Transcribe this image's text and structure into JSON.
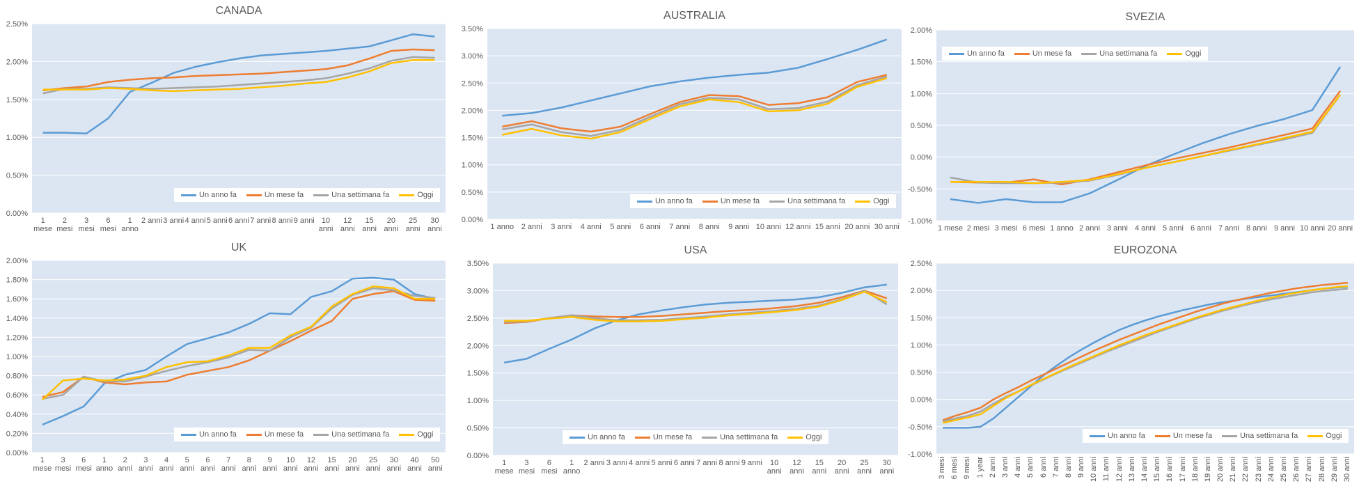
{
  "chart_data": [
    {
      "type": "line",
      "title": "CANADA",
      "categories": [
        "1 mese",
        "2 mesi",
        "3 mesi",
        "6 mesi",
        "1 anno",
        "2 anni",
        "3 anni",
        "4 anni",
        "5 anni",
        "6 anni",
        "7 anni",
        "8 anni",
        "9 anni",
        "10 anni",
        "12 anni",
        "15 anni",
        "20 anni",
        "25 anni",
        "30 anni"
      ],
      "series": [
        {
          "name": "Un anno fa",
          "color": "#5b9bd5",
          "values": [
            1.06,
            1.06,
            1.05,
            1.25,
            1.6,
            1.72,
            1.85,
            1.93,
            1.99,
            2.04,
            2.08,
            2.1,
            2.12,
            2.14,
            2.17,
            2.2,
            2.28,
            2.36,
            2.33
          ]
        },
        {
          "name": "Un mese fa",
          "color": "#ed7d31",
          "values": [
            1.62,
            1.65,
            1.67,
            1.73,
            1.76,
            1.78,
            1.79,
            1.81,
            1.82,
            1.83,
            1.84,
            1.86,
            1.88,
            1.9,
            1.95,
            2.04,
            2.14,
            2.16,
            2.15
          ]
        },
        {
          "name": "Una settimana fa",
          "color": "#a5a5a5",
          "values": [
            1.58,
            1.64,
            1.64,
            1.66,
            1.65,
            1.64,
            1.65,
            1.66,
            1.67,
            1.69,
            1.71,
            1.73,
            1.75,
            1.78,
            1.84,
            1.91,
            2.01,
            2.06,
            2.05
          ]
        },
        {
          "name": "Oggi",
          "color": "#ffc000",
          "values": [
            1.63,
            1.63,
            1.63,
            1.65,
            1.64,
            1.62,
            1.61,
            1.62,
            1.63,
            1.64,
            1.66,
            1.68,
            1.71,
            1.73,
            1.79,
            1.87,
            1.98,
            2.02,
            2.02
          ]
        }
      ],
      "ylim": [
        0,
        2.5
      ],
      "yticks": [
        {
          "value": 0,
          "label": "0.00%"
        },
        {
          "value": 0.5,
          "label": "0.50%"
        },
        {
          "value": 1,
          "label": "1.00%"
        },
        {
          "value": 1.5,
          "label": "1.50%"
        },
        {
          "value": 2,
          "label": "2.00%"
        },
        {
          "value": 2.5,
          "label": "2.50%"
        }
      ],
      "grid": true,
      "legend": "lower right"
    },
    {
      "type": "line",
      "title": "AUSTRALIA",
      "categories": [
        "1 anno",
        "2 anni",
        "3 anni",
        "4 anni",
        "5 anni",
        "6 anni",
        "7 anni",
        "8 anni",
        "9 anni",
        "10 anni",
        "12 anni",
        "15 anni",
        "20 anni",
        "30 anni"
      ],
      "series": [
        {
          "name": "Un anno fa",
          "color": "#5b9bd5",
          "values": [
            1.9,
            1.95,
            2.05,
            2.18,
            2.31,
            2.44,
            2.53,
            2.6,
            2.65,
            2.69,
            2.78,
            2.94,
            3.11,
            3.3
          ]
        },
        {
          "name": "Un mese fa",
          "color": "#ed7d31",
          "values": [
            1.7,
            1.8,
            1.67,
            1.61,
            1.7,
            1.93,
            2.15,
            2.28,
            2.26,
            2.1,
            2.13,
            2.24,
            2.52,
            2.65
          ]
        },
        {
          "name": "Una settimana fa",
          "color": "#a5a5a5",
          "values": [
            1.65,
            1.74,
            1.6,
            1.53,
            1.64,
            1.88,
            2.11,
            2.23,
            2.2,
            2.02,
            2.04,
            2.16,
            2.46,
            2.62
          ]
        },
        {
          "name": "Oggi",
          "color": "#ffc000",
          "values": [
            1.55,
            1.66,
            1.54,
            1.48,
            1.6,
            1.84,
            2.07,
            2.2,
            2.15,
            1.98,
            2.0,
            2.12,
            2.43,
            2.59
          ]
        }
      ],
      "ylim": [
        0,
        3.5
      ],
      "yticks": [
        {
          "value": 0,
          "label": "0.00%"
        },
        {
          "value": 0.5,
          "label": "0.50%"
        },
        {
          "value": 1,
          "label": "1.00%"
        },
        {
          "value": 1.5,
          "label": "1.50%"
        },
        {
          "value": 2,
          "label": "2.00%"
        },
        {
          "value": 2.5,
          "label": "2.50%"
        },
        {
          "value": 3,
          "label": "3.00%"
        },
        {
          "value": 3.5,
          "label": "3.50%"
        }
      ],
      "grid": true,
      "legend": "lower right"
    },
    {
      "type": "line",
      "title": "SVEZIA",
      "categories": [
        "1 mese",
        "2 mesi",
        "3 mesi",
        "6 mesi",
        "1 anno",
        "2 anni",
        "3 anni",
        "4 anni",
        "5 anni",
        "6 anni",
        "7 anni",
        "8 anni",
        "9 anni",
        "10 anni",
        "20 anni"
      ],
      "series": [
        {
          "name": "Un anno fa",
          "color": "#5b9bd5",
          "values": [
            -0.66,
            -0.72,
            -0.66,
            -0.71,
            -0.71,
            -0.57,
            -0.36,
            -0.14,
            0.04,
            0.21,
            0.36,
            0.49,
            0.6,
            0.74,
            1.42
          ]
        },
        {
          "name": "Un mese fa",
          "color": "#ed7d31",
          "values": [
            -0.39,
            -0.4,
            -0.4,
            -0.35,
            -0.43,
            -0.35,
            -0.24,
            -0.13,
            -0.03,
            0.06,
            0.15,
            0.25,
            0.35,
            0.45,
            1.04
          ]
        },
        {
          "name": "Una settimana fa",
          "color": "#a5a5a5",
          "values": [
            -0.32,
            -0.4,
            -0.41,
            -0.41,
            -0.4,
            -0.37,
            -0.28,
            -0.17,
            -0.08,
            0.01,
            0.1,
            0.19,
            0.28,
            0.38,
            0.98
          ]
        },
        {
          "name": "Oggi",
          "color": "#ffc000",
          "values": [
            -0.39,
            -0.39,
            -0.39,
            -0.41,
            -0.39,
            -0.36,
            -0.27,
            -0.17,
            -0.08,
            0.01,
            0.11,
            0.2,
            0.3,
            0.4,
            0.98
          ]
        }
      ],
      "ylim": [
        -1,
        2
      ],
      "yticks": [
        {
          "value": -1,
          "label": "-1.00%"
        },
        {
          "value": -0.5,
          "label": "-0.50%"
        },
        {
          "value": 0,
          "label": "0.00%"
        },
        {
          "value": 0.5,
          "label": "0.50%"
        },
        {
          "value": 1,
          "label": "1.00%"
        },
        {
          "value": 1.5,
          "label": "1.50%"
        },
        {
          "value": 2,
          "label": "2.00%"
        }
      ],
      "grid": true,
      "legend": "upper left"
    },
    {
      "type": "line",
      "title": "UK",
      "categories": [
        "1 mese",
        "3 mesi",
        "6 mesi",
        "1 anno",
        "2 anni",
        "3 anni",
        "4 anni",
        "5 anni",
        "6 anni",
        "7 anni",
        "8 anni",
        "9 anni",
        "10 anni",
        "12 anni",
        "15 anni",
        "20 anni",
        "25 anni",
        "30 anni",
        "40 anni",
        "50 anni"
      ],
      "series": [
        {
          "name": "Un anno fa",
          "color": "#5b9bd5",
          "values": [
            0.29,
            0.38,
            0.48,
            0.72,
            0.81,
            0.86,
            1.0,
            1.13,
            1.19,
            1.25,
            1.34,
            1.45,
            1.44,
            1.62,
            1.68,
            1.81,
            1.82,
            1.8,
            1.65,
            1.6
          ]
        },
        {
          "name": "Un mese fa",
          "color": "#ed7d31",
          "values": [
            0.58,
            0.63,
            0.79,
            0.73,
            0.71,
            0.73,
            0.74,
            0.81,
            0.85,
            0.89,
            0.96,
            1.06,
            1.16,
            1.27,
            1.37,
            1.6,
            1.65,
            1.68,
            1.59,
            1.58
          ]
        },
        {
          "name": "Una settimana fa",
          "color": "#a5a5a5",
          "values": [
            0.56,
            0.6,
            0.79,
            0.74,
            0.74,
            0.79,
            0.85,
            0.9,
            0.94,
            0.99,
            1.07,
            1.06,
            1.2,
            1.3,
            1.5,
            1.64,
            1.71,
            1.69,
            1.63,
            1.61
          ]
        },
        {
          "name": "Oggi",
          "color": "#ffc000",
          "values": [
            0.55,
            0.75,
            0.77,
            0.75,
            0.76,
            0.8,
            0.89,
            0.94,
            0.95,
            1.01,
            1.09,
            1.09,
            1.22,
            1.31,
            1.52,
            1.65,
            1.73,
            1.71,
            1.6,
            1.6
          ]
        }
      ],
      "ylim": [
        0,
        2
      ],
      "yticks": [
        {
          "value": 0,
          "label": "0.00%"
        },
        {
          "value": 0.2,
          "label": "0.20%"
        },
        {
          "value": 0.4,
          "label": "0.40%"
        },
        {
          "value": 0.6,
          "label": "0.60%"
        },
        {
          "value": 0.8,
          "label": "0.80%"
        },
        {
          "value": 1,
          "label": "1.00%"
        },
        {
          "value": 1.2,
          "label": "1.20%"
        },
        {
          "value": 1.4,
          "label": "1.40%"
        },
        {
          "value": 1.6,
          "label": "1.60%"
        },
        {
          "value": 1.8,
          "label": "1.80%"
        },
        {
          "value": 2,
          "label": "2.00%"
        }
      ],
      "grid": true,
      "legend": "lower right"
    },
    {
      "type": "line",
      "title": "USA",
      "categories": [
        "1 mese",
        "3 mesi",
        "6 mesi",
        "1 anno",
        "2 anni",
        "3 anni",
        "4 anni",
        "5 anni",
        "6 anni",
        "7 anni",
        "8 anni",
        "9 anni",
        "10 anni",
        "12 anni",
        "15 anni",
        "20 anni",
        "25 anni",
        "30 anni"
      ],
      "series": [
        {
          "name": "Un anno fa",
          "color": "#5b9bd5",
          "values": [
            1.69,
            1.76,
            1.94,
            2.11,
            2.31,
            2.46,
            2.57,
            2.64,
            2.7,
            2.75,
            2.78,
            2.8,
            2.82,
            2.84,
            2.88,
            2.96,
            3.06,
            3.11
          ]
        },
        {
          "name": "Un mese fa",
          "color": "#ed7d31",
          "values": [
            2.41,
            2.43,
            2.5,
            2.55,
            2.53,
            2.52,
            2.52,
            2.54,
            2.57,
            2.6,
            2.63,
            2.65,
            2.68,
            2.72,
            2.78,
            2.88,
            3.0,
            2.86
          ]
        },
        {
          "name": "Una settimana fa",
          "color": "#a5a5a5",
          "values": [
            2.43,
            2.44,
            2.5,
            2.55,
            2.5,
            2.46,
            2.46,
            2.47,
            2.5,
            2.53,
            2.57,
            2.6,
            2.63,
            2.67,
            2.73,
            2.84,
            3.0,
            2.75
          ]
        },
        {
          "name": "Oggi",
          "color": "#ffc000",
          "values": [
            2.45,
            2.45,
            2.49,
            2.52,
            2.47,
            2.44,
            2.44,
            2.45,
            2.48,
            2.51,
            2.55,
            2.58,
            2.61,
            2.65,
            2.71,
            2.83,
            2.98,
            2.79
          ]
        }
      ],
      "ylim": [
        0,
        3.5
      ],
      "yticks": [
        {
          "value": 0,
          "label": "0.00%"
        },
        {
          "value": 0.5,
          "label": "0.50%"
        },
        {
          "value": 1,
          "label": "1.00%"
        },
        {
          "value": 1.5,
          "label": "1.50%"
        },
        {
          "value": 2,
          "label": "2.00%"
        },
        {
          "value": 2.5,
          "label": "2.50%"
        },
        {
          "value": 3,
          "label": "3.00%"
        },
        {
          "value": 3.5,
          "label": "3.50%"
        }
      ],
      "grid": true,
      "legend": "lower center"
    },
    {
      "type": "line",
      "title": "EUROZONA",
      "categories": [
        "3 mesi",
        "6 mesi",
        "9 mesi",
        "1 year",
        "2 anni",
        "3 anni",
        "4 anni",
        "5 anni",
        "6 anni",
        "7 anni",
        "8 anni",
        "9 anni",
        "10 anni",
        "11 anni",
        "12 anni",
        "13 anni",
        "14 anni",
        "15 anni",
        "16 anni",
        "17 anni",
        "18 anni",
        "19 anni",
        "20 anni",
        "21 anni",
        "22 anni",
        "23 anni",
        "24 anni",
        "25 anni",
        "26 anni",
        "27 anni",
        "28 anni",
        "29 anni",
        "30 anni"
      ],
      "series": [
        {
          "name": "Un anno fa",
          "color": "#5b9bd5",
          "values": [
            -0.52,
            -0.52,
            -0.52,
            -0.5,
            -0.35,
            -0.15,
            0.05,
            0.25,
            0.45,
            0.62,
            0.78,
            0.92,
            1.05,
            1.17,
            1.28,
            1.37,
            1.45,
            1.52,
            1.58,
            1.64,
            1.69,
            1.74,
            1.78,
            1.81,
            1.85,
            1.88,
            1.91,
            1.94,
            1.97,
            2.0,
            2.03,
            2.05,
            2.07
          ]
        },
        {
          "name": "Un mese fa",
          "color": "#ed7d31",
          "values": [
            -0.38,
            -0.3,
            -0.23,
            -0.15,
            0.0,
            0.12,
            0.23,
            0.35,
            0.46,
            0.57,
            0.68,
            0.79,
            0.9,
            1.0,
            1.1,
            1.19,
            1.28,
            1.37,
            1.45,
            1.53,
            1.61,
            1.68,
            1.75,
            1.81,
            1.86,
            1.91,
            1.96,
            2.0,
            2.04,
            2.07,
            2.1,
            2.12,
            2.14
          ]
        },
        {
          "name": "Una settimana fa",
          "color": "#a5a5a5",
          "values": [
            -0.4,
            -0.35,
            -0.3,
            -0.22,
            -0.08,
            0.05,
            0.15,
            0.26,
            0.37,
            0.48,
            0.58,
            0.68,
            0.78,
            0.88,
            0.97,
            1.06,
            1.15,
            1.24,
            1.32,
            1.4,
            1.48,
            1.55,
            1.62,
            1.68,
            1.74,
            1.79,
            1.84,
            1.88,
            1.92,
            1.96,
            1.99,
            2.01,
            2.03
          ]
        },
        {
          "name": "Oggi",
          "color": "#ffc000",
          "values": [
            -0.43,
            -0.38,
            -0.33,
            -0.27,
            -0.12,
            0.03,
            0.15,
            0.27,
            0.38,
            0.49,
            0.6,
            0.7,
            0.8,
            0.9,
            1.0,
            1.09,
            1.18,
            1.26,
            1.34,
            1.42,
            1.5,
            1.57,
            1.64,
            1.7,
            1.76,
            1.82,
            1.87,
            1.92,
            1.96,
            2.0,
            2.03,
            2.06,
            2.08
          ]
        }
      ],
      "ylim": [
        -1,
        2.5
      ],
      "yticks": [
        {
          "value": -1,
          "label": "-1.00%"
        },
        {
          "value": -0.5,
          "label": "-0.50%"
        },
        {
          "value": 0,
          "label": "0.00%"
        },
        {
          "value": 0.5,
          "label": "0.50%"
        },
        {
          "value": 1,
          "label": "1.00%"
        },
        {
          "value": 1.5,
          "label": "1.50%"
        },
        {
          "value": 2,
          "label": "2.00%"
        },
        {
          "value": 2.5,
          "label": "2.50%"
        }
      ],
      "grid": true,
      "legend": "lower right",
      "rotate_labels": true
    }
  ]
}
